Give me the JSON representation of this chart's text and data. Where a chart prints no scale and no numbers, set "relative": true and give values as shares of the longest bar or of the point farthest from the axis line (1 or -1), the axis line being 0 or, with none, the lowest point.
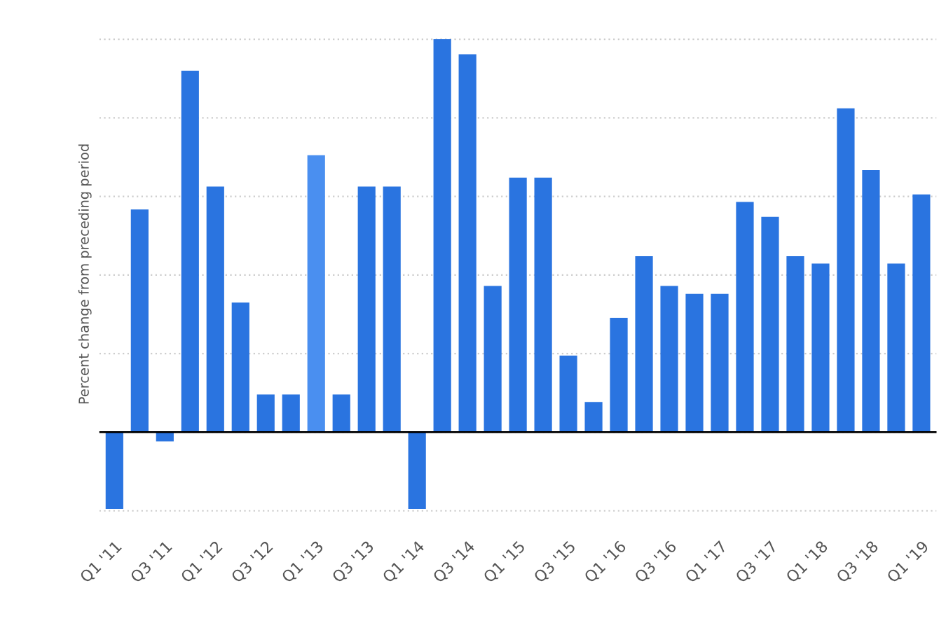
{
  "chart_data": {
    "type": "bar",
    "relative": true,
    "ylabel": "Percent change from preceding period",
    "categories": [
      "Q1 '11",
      null,
      "Q3 '11",
      null,
      "Q1 '12",
      null,
      "Q3 '12",
      null,
      "Q1 '13",
      null,
      "Q3 '13",
      null,
      "Q1 '14",
      null,
      "Q3 '14",
      null,
      "Q1 '15",
      null,
      "Q3 '15",
      null,
      "Q1 '16",
      null,
      "Q3 '16",
      null,
      "Q1 '17",
      null,
      "Q3 '17",
      null,
      "Q1 '18",
      null,
      "Q3 '18",
      null,
      "Q1 '19"
    ],
    "values": [
      -0.195,
      0.567,
      -0.023,
      0.92,
      0.625,
      0.33,
      0.096,
      0.096,
      0.705,
      0.096,
      0.625,
      0.625,
      -0.195,
      1,
      0.962,
      0.372,
      0.648,
      0.648,
      0.195,
      0.077,
      0.291,
      0.448,
      0.372,
      0.352,
      0.352,
      0.586,
      0.548,
      0.448,
      0.429,
      0.824,
      0.667,
      0.429,
      0.605
    ],
    "colors": [
      "#2a74e0",
      "#2a74e0",
      "#2a74e0",
      "#2a74e0",
      "#2a74e0",
      "#2a74e0",
      "#2a74e0",
      "#2a74e0",
      "#4a8ff0",
      "#2a74e0",
      "#2a74e0",
      "#2a74e0",
      "#2a74e0",
      "#2a74e0",
      "#2a74e0",
      "#2a74e0",
      "#2a74e0",
      "#2a74e0",
      "#2a74e0",
      "#2a74e0",
      "#2a74e0",
      "#2a74e0",
      "#2a74e0",
      "#2a74e0",
      "#2a74e0",
      "#2a74e0",
      "#2a74e0",
      "#2a74e0",
      "#2a74e0",
      "#2a74e0",
      "#2a74e0",
      "#2a74e0",
      "#2a74e0"
    ],
    "grid": "y"
  }
}
